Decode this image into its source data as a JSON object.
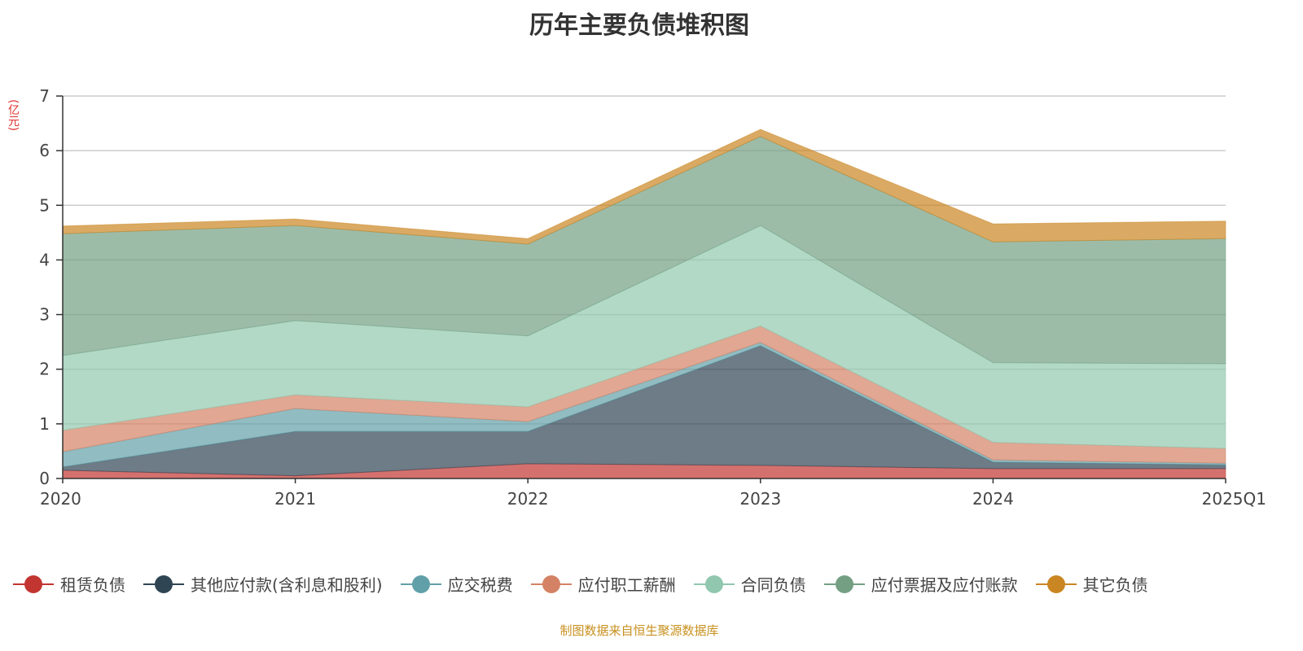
{
  "chart_data": {
    "type": "area",
    "stacked": true,
    "title": "历年主要负债堆积图",
    "ylabel": "(亿元)",
    "ylim": [
      0,
      7
    ],
    "yticks": [
      0,
      1,
      2,
      3,
      4,
      5,
      6,
      7
    ],
    "grid": true,
    "legend_position": "bottom",
    "categories": [
      "2020",
      "2021",
      "2022",
      "2023",
      "2024",
      "2025Q1"
    ],
    "series": [
      {
        "name": "租赁负债",
        "color": "#c23531",
        "values": [
          0.15,
          0.05,
          0.27,
          0.24,
          0.18,
          0.18
        ]
      },
      {
        "name": "其他应付款(含利息和股利)",
        "color": "#2f4554",
        "values": [
          0.06,
          0.81,
          0.59,
          2.19,
          0.12,
          0.07
        ]
      },
      {
        "name": "应交税费",
        "color": "#61a0a8",
        "values": [
          0.28,
          0.42,
          0.18,
          0.06,
          0.04,
          0.03
        ]
      },
      {
        "name": "应付职工薪酬",
        "color": "#d48265",
        "values": [
          0.39,
          0.25,
          0.27,
          0.3,
          0.32,
          0.27
        ]
      },
      {
        "name": "合同负债",
        "color": "#91c7ae",
        "values": [
          1.37,
          1.36,
          1.3,
          1.84,
          1.46,
          1.55
        ]
      },
      {
        "name": "应付票据及应付账款",
        "color": "#749f83",
        "values": [
          2.23,
          1.74,
          1.68,
          1.63,
          2.21,
          2.29
        ]
      },
      {
        "name": "其它负债",
        "color": "#ca8622",
        "values": [
          0.14,
          0.12,
          0.1,
          0.13,
          0.33,
          0.32
        ]
      }
    ]
  },
  "source": "制图数据来自恒生聚源数据库"
}
